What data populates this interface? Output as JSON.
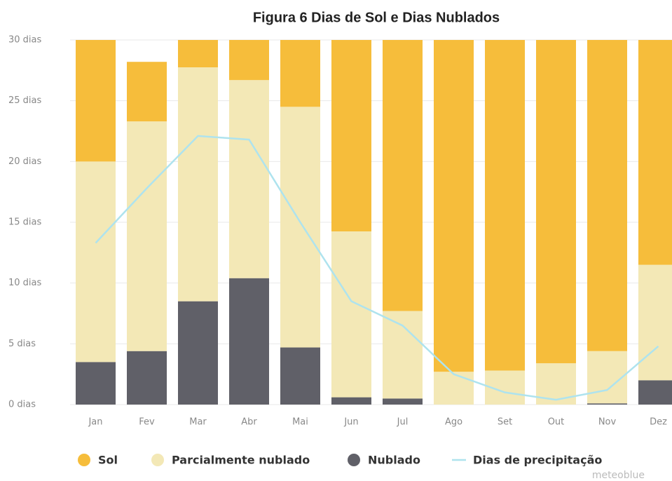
{
  "chart_data": {
    "type": "bar",
    "stacked": true,
    "title": "Figura 6 Dias de Sol e Dias Nublados",
    "categories": [
      "Jan",
      "Fev",
      "Mar",
      "Abr",
      "Mai",
      "Jun",
      "Jul",
      "Ago",
      "Set",
      "Out",
      "Nov",
      "Dez"
    ],
    "series": [
      {
        "name": "Nublado",
        "color": "#606068",
        "values": [
          3.5,
          4.4,
          8.5,
          10.4,
          4.7,
          0.6,
          0.5,
          0,
          0,
          0,
          0.1,
          2.0
        ]
      },
      {
        "name": "Parcialmente nublado",
        "color": "#f3e8b6",
        "values": [
          16.5,
          18.9,
          19.25,
          16.3,
          19.8,
          13.65,
          7.2,
          2.7,
          2.8,
          3.4,
          4.3,
          9.5
        ]
      },
      {
        "name": "Sol",
        "color": "#f6bd3b",
        "values": [
          10,
          4.9,
          2.25,
          3.3,
          5.5,
          15.75,
          22.3,
          27.3,
          27.2,
          26.6,
          25.6,
          18.5
        ]
      },
      {
        "name": "Dias de precipitação",
        "type": "line",
        "color": "#aee3ee",
        "values": [
          13.3,
          17.8,
          22.1,
          21.8,
          15,
          8.5,
          6.5,
          2.5,
          1.0,
          0.4,
          1.2,
          4.8
        ]
      }
    ],
    "legend_order": [
      2,
      1,
      0,
      3
    ],
    "ylim": [
      0,
      30
    ],
    "yticks": [
      {
        "value": 0,
        "label": "0 dias"
      },
      {
        "value": 5,
        "label": "5 dias"
      },
      {
        "value": 10,
        "label": "10 dias"
      },
      {
        "value": 15,
        "label": "15 dias"
      },
      {
        "value": 20,
        "label": "20 dias"
      },
      {
        "value": 25,
        "label": "25 dias"
      },
      {
        "value": 30,
        "label": "30 dias"
      }
    ],
    "grid": true,
    "watermark": "meteoblue"
  }
}
